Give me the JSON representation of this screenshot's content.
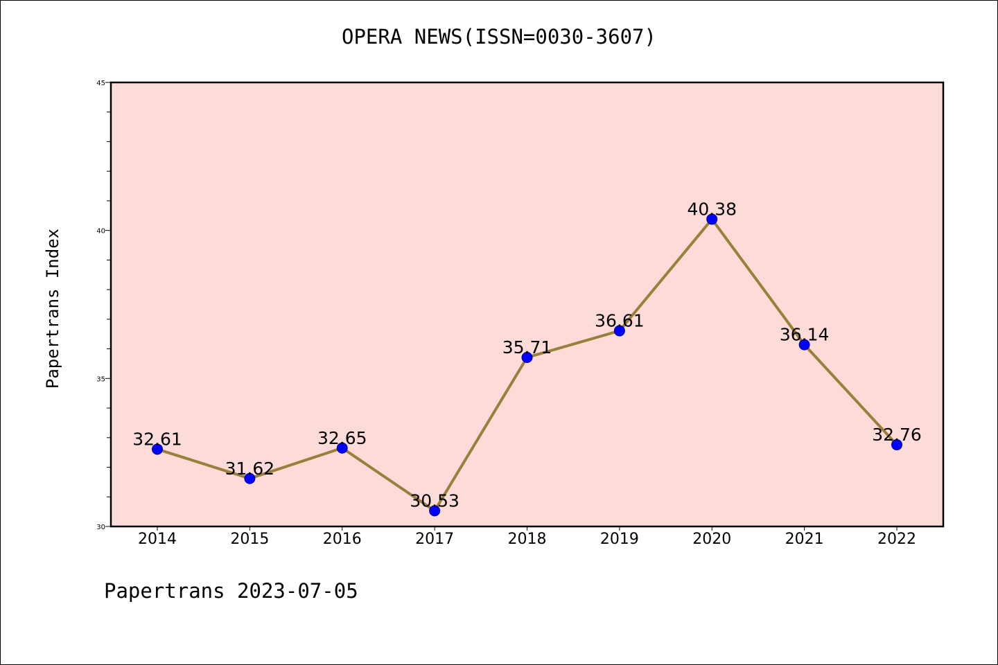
{
  "title": "OPERA NEWS(ISSN=0030-3607)",
  "footer": "Papertrans 2023-07-05",
  "chart_data": {
    "type": "line",
    "title": "OPERA NEWS(ISSN=0030-3607)",
    "xlabel": "",
    "ylabel": "Papertrans Index",
    "categories": [
      "2014",
      "2015",
      "2016",
      "2017",
      "2018",
      "2019",
      "2020",
      "2021",
      "2022"
    ],
    "values": [
      32.61,
      31.62,
      32.65,
      30.53,
      35.71,
      36.61,
      40.38,
      36.14,
      32.76
    ],
    "data_labels": [
      "32.61",
      "31.62",
      "32.65",
      "30.53",
      "35.71",
      "36.61",
      "40.38",
      "36.14",
      "32.76"
    ],
    "ylim": [
      30,
      45
    ],
    "y_major_ticks": [
      30,
      35,
      40,
      45
    ],
    "y_minor_step": 1,
    "grid": false,
    "colors": {
      "plot_background": "#fddbd8",
      "line": "#9a7f3a",
      "marker": "#0000ff",
      "marker_edge": "#00008b"
    }
  }
}
